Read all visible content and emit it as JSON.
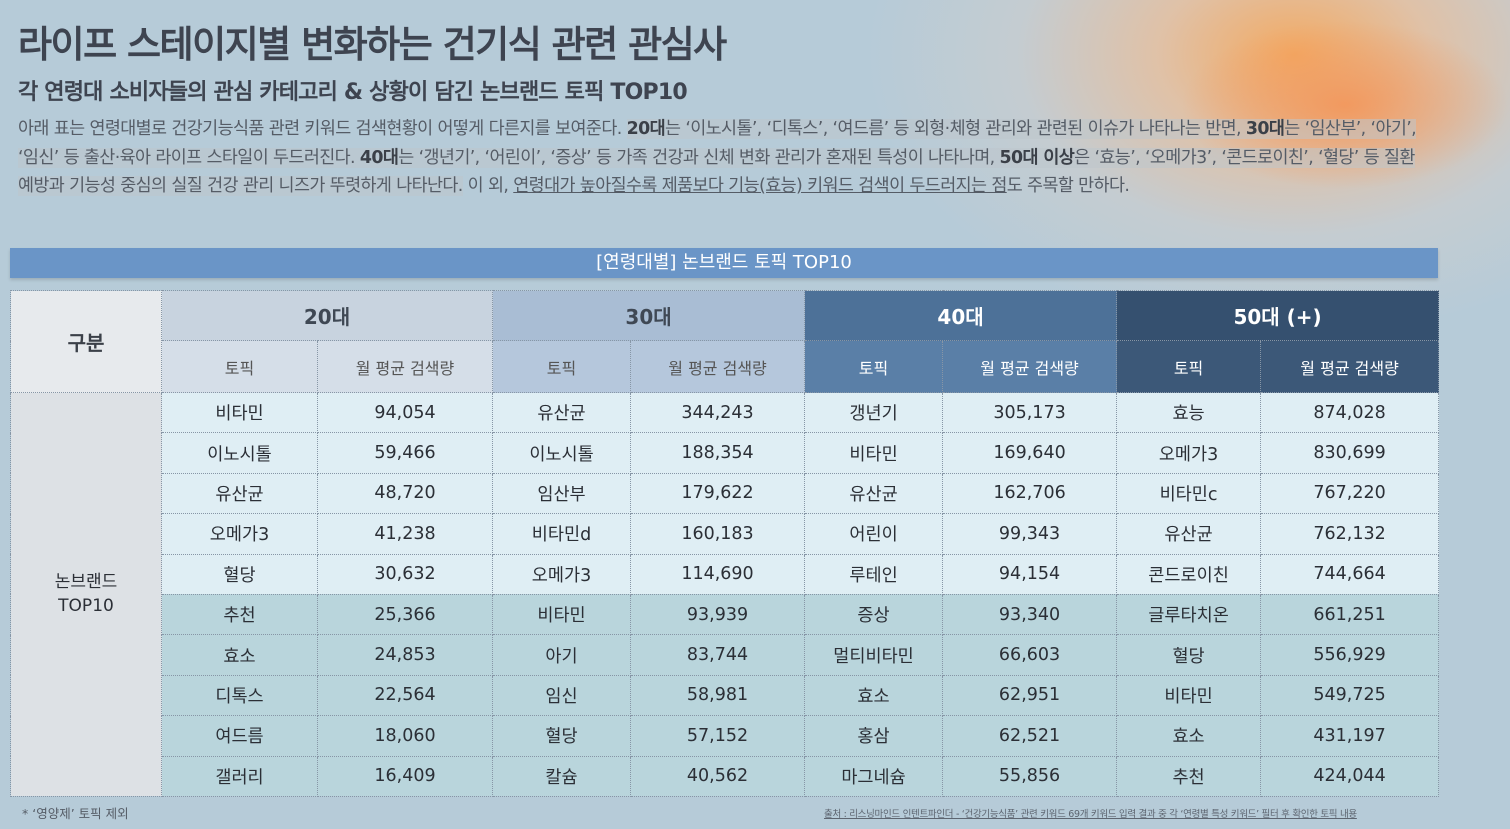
{
  "title": "라이프 스테이지별 변화하는 건기식 관련 관심사",
  "subtitle": "각 연령대 소비자들의 관심 카테고리 & 상황이 담긴 논브랜드 토픽 TOP10",
  "description": {
    "s1": "아래 표는 연령대별로 건강기능식품 관련 키워드 검색현황이 어떻게 다른지를 보여준다. ",
    "s2a": "20대",
    "s2b": "는 ‘이노시톨’, ‘디톡스’, ‘여드름’ 등 외형·체형 관리와 관련된 이슈가 나타나는 반면, ",
    "s3a": "30대",
    "s3b": "는 ‘임산부’, ‘아기’, ‘임신’ 등 출산·육아 라이프 스타일이 두드러진다. ",
    "s4a": "40대",
    "s4b": "는 ‘갱년기’, ‘어린이’, ‘증상’ 등 가족 건강과 신체 변화 관리가 혼재된 특성이 나타나며, ",
    "s5a": "50대 이상",
    "s5b": "은 ‘효능’, ‘오메가3’, ‘콘드로이친’, ‘혈당’ 등 질환 예방과 기능성 중심의 실질 건강 관리 니즈가 뚜렷하게 나타난다.",
    "s6": " 이 외, ",
    "s7": "연령대가 높아질수록 제품보다 기능(효능) 키워드 검색이 두드러지는 점",
    "s8": "도 주목할 만하다."
  },
  "banner": "[연령대별] 논브랜드 토픽 TOP10",
  "table": {
    "gubun": "구분",
    "row_label": "논브랜드 TOP10",
    "groups": [
      "20대",
      "30대",
      "40대",
      "50대 (+)"
    ],
    "sub_topic": "토픽",
    "sub_volume": "월 평균 검색량",
    "rows": [
      [
        {
          "t": "비타민",
          "v": "94,054",
          "b": false
        },
        {
          "t": "유산균",
          "v": "344,243",
          "b": false
        },
        {
          "t": "갱년기",
          "v": "305,173",
          "b": true
        },
        {
          "t": "효능",
          "v": "874,028",
          "b": true
        }
      ],
      [
        {
          "t": "이노시톨",
          "v": "59,466",
          "b": true
        },
        {
          "t": "이노시톨",
          "v": "188,354",
          "b": false
        },
        {
          "t": "비타민",
          "v": "169,640",
          "b": false
        },
        {
          "t": "오메가3",
          "v": "830,699",
          "b": true
        }
      ],
      [
        {
          "t": "유산균",
          "v": "48,720",
          "b": false
        },
        {
          "t": "임산부",
          "v": "179,622",
          "b": true
        },
        {
          "t": "유산균",
          "v": "162,706",
          "b": false
        },
        {
          "t": "비타민c",
          "v": "767,220",
          "b": false
        }
      ],
      [
        {
          "t": "오메가3",
          "v": "41,238",
          "b": false
        },
        {
          "t": "비타민d",
          "v": "160,183",
          "b": false
        },
        {
          "t": "어린이",
          "v": "99,343",
          "b": true
        },
        {
          "t": "유산균",
          "v": "762,132",
          "b": false
        }
      ],
      [
        {
          "t": "혈당",
          "v": "30,632",
          "b": false
        },
        {
          "t": "오메가3",
          "v": "114,690",
          "b": false
        },
        {
          "t": "루테인",
          "v": "94,154",
          "b": false
        },
        {
          "t": "콘드로이친",
          "v": "744,664",
          "b": true
        }
      ],
      [
        {
          "t": "추천",
          "v": "25,366",
          "b": false
        },
        {
          "t": "비타민",
          "v": "93,939",
          "b": false
        },
        {
          "t": "증상",
          "v": "93,340",
          "b": true
        },
        {
          "t": "글루타치온",
          "v": "661,251",
          "b": false
        }
      ],
      [
        {
          "t": "효소",
          "v": "24,853",
          "b": false
        },
        {
          "t": "아기",
          "v": "83,744",
          "b": true
        },
        {
          "t": "멀티비타민",
          "v": "66,603",
          "b": false
        },
        {
          "t": "혈당",
          "v": "556,929",
          "b": true
        }
      ],
      [
        {
          "t": "디톡스",
          "v": "22,564",
          "b": true
        },
        {
          "t": "임신",
          "v": "58,981",
          "b": true
        },
        {
          "t": "효소",
          "v": "62,951",
          "b": false
        },
        {
          "t": "비타민",
          "v": "549,725",
          "b": false
        }
      ],
      [
        {
          "t": "여드름",
          "v": "18,060",
          "b": true
        },
        {
          "t": "혈당",
          "v": "57,152",
          "b": false
        },
        {
          "t": "홍삼",
          "v": "62,521",
          "b": false
        },
        {
          "t": "효소",
          "v": "431,197",
          "b": false
        }
      ],
      [
        {
          "t": "갤러리",
          "v": "16,409",
          "b": false
        },
        {
          "t": "칼슘",
          "v": "40,562",
          "b": false
        },
        {
          "t": "마그네슘",
          "v": "55,856",
          "b": false
        },
        {
          "t": "추천",
          "v": "424,044",
          "b": false
        }
      ]
    ]
  },
  "footnote_left": "* ‘영양제’ 토픽 제외",
  "footnote_right": "출처 : 리스닝마인드 인텐트파인더 - ‘건강기능식품’ 관련 키워드 69개 키워드 입력 결과 중 각 ‘연령별 특성 키워드’ 필터 후 확인한 토픽 내용",
  "colors": {
    "background": "#b6cbd8",
    "banner": "#6a95c7",
    "col20": "#c8d3df",
    "col30": "#a9bdd4",
    "col40": "#4d7198",
    "col50": "#35506f",
    "row_light": "#dfeef4",
    "row_dark": "#b9d5dc"
  }
}
